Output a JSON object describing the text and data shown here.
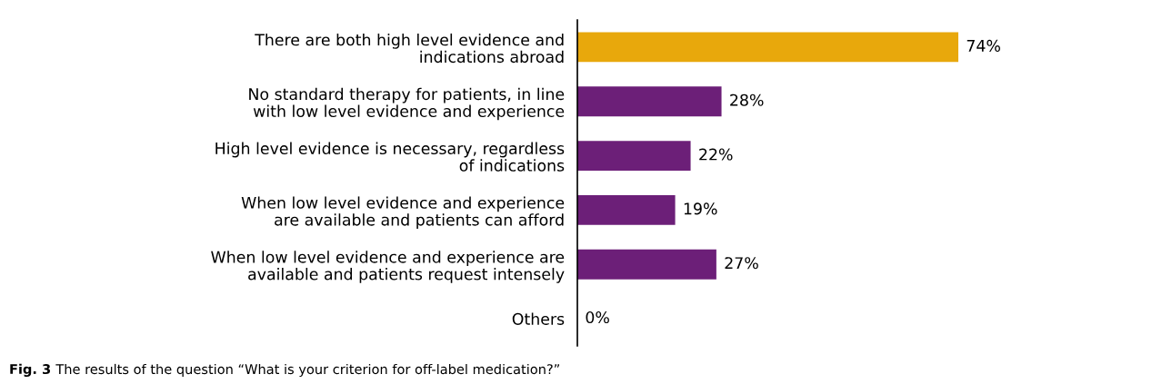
{
  "chart_data": {
    "type": "bar",
    "orientation": "horizontal",
    "data_labels": true,
    "categories": [
      "There are both high level evidence and\nindications abroad",
      "No standard therapy for patients, in line\nwith low level evidence and experience",
      "High level evidence is necessary, regardless\nof indications",
      "When low level evidence and experience\nare available and patients can afford",
      "When low level evidence and experience are\navailable and patients request intensely",
      "Others"
    ],
    "values": [
      74,
      28,
      22,
      19,
      27,
      0
    ],
    "value_labels": [
      "74%",
      "28%",
      "22%",
      "19%",
      "27%",
      "0%"
    ],
    "colors": [
      "#e8a80c",
      "#6c1f78",
      "#6c1f78",
      "#6c1f78",
      "#6c1f78",
      "#6c1f78"
    ],
    "annotations": [
      "Fig. 3",
      "The results of the question “What is your criterion for off-label medication?”"
    ]
  }
}
